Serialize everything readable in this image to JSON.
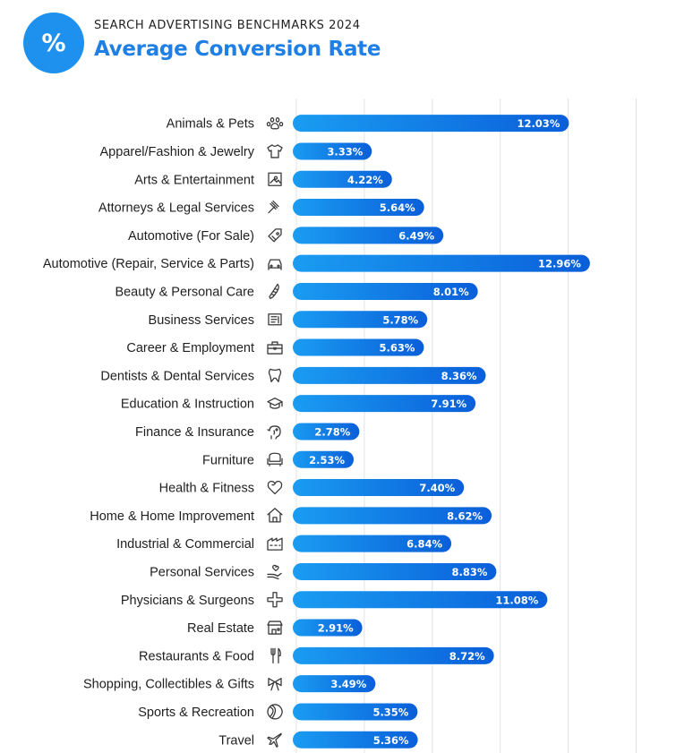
{
  "header": {
    "badge_symbol": "%",
    "eyebrow": "SEARCH ADVERTISING BENCHMARKS 2024",
    "title": "Average Conversion Rate"
  },
  "colors": {
    "accent": "#1e7fe6",
    "bar_start": "#1a9cf2",
    "bar_end": "#0a5fd9",
    "badge": "#1e90ee"
  },
  "chart_data": {
    "type": "bar",
    "orientation": "horizontal",
    "title": "Average Conversion Rate",
    "value_suffix": "%",
    "grid": true,
    "xlim": [
      0,
      18
    ],
    "categories": [
      "Animals & Pets",
      "Apparel/Fashion & Jewelry",
      "Arts & Entertainment",
      "Attorneys & Legal Services",
      "Automotive (For Sale)",
      "Automotive (Repair, Service & Parts)",
      "Beauty & Personal Care",
      "Business Services",
      "Career & Employment",
      "Dentists & Dental Services",
      "Education & Instruction",
      "Finance & Insurance",
      "Furniture",
      "Health & Fitness",
      "Home & Home Improvement",
      "Industrial & Commercial",
      "Personal Services",
      "Physicians & Surgeons",
      "Real Estate",
      "Restaurants & Food",
      "Shopping, Collectibles & Gifts",
      "Sports & Recreation",
      "Travel"
    ],
    "values": [
      12.03,
      3.33,
      4.22,
      5.64,
      6.49,
      12.96,
      8.01,
      5.78,
      5.63,
      8.36,
      7.91,
      2.78,
      2.53,
      7.4,
      8.62,
      6.84,
      8.83,
      11.08,
      2.91,
      8.72,
      3.49,
      5.35,
      5.36
    ],
    "value_labels": [
      "12.03%",
      "3.33%",
      "4.22%",
      "5.64%",
      "6.49%",
      "12.96%",
      "8.01%",
      "5.78%",
      "5.63%",
      "8.36%",
      "7.91%",
      "2.78%",
      "2.53%",
      "7.40%",
      "8.62%",
      "6.84%",
      "8.83%",
      "11.08%",
      "2.91%",
      "8.72%",
      "3.49%",
      "5.35%",
      "5.36%"
    ],
    "icons": [
      "paw-icon",
      "tshirt-icon",
      "picture-icon",
      "gavel-icon",
      "price-tag-icon",
      "car-icon",
      "comb-icon",
      "document-icon",
      "briefcase-icon",
      "tooth-icon",
      "graduation-cap-icon",
      "piggy-bank-icon",
      "armchair-icon",
      "heart-icon",
      "house-icon",
      "factory-icon",
      "hand-heart-icon",
      "medical-cross-icon",
      "storefront-icon",
      "utensils-icon",
      "gift-bow-icon",
      "ball-icon",
      "airplane-icon"
    ]
  }
}
